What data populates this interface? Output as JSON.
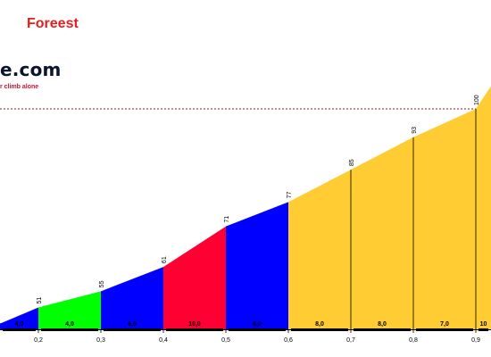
{
  "page": {
    "title": "Foreest",
    "logo_text": "e.com",
    "tagline": "r climb alone"
  },
  "colors": {
    "blue": "#0000ff",
    "green": "#00ff00",
    "red": "#ff0033",
    "yellow": "#ffcc33",
    "title_red": "#e61e1e"
  },
  "chart_data": {
    "type": "area",
    "title": "Foreest",
    "xlabel": "",
    "ylabel": "",
    "x_ticks": [
      "0,2",
      "0,3",
      "0,4",
      "0,5",
      "0,6",
      "0,7",
      "0,8",
      "0,9"
    ],
    "xlim": [
      0.1,
      0.98
    ],
    "ylim": [
      45,
      100
    ],
    "points": [
      {
        "x": 0.1,
        "y": 47
      },
      {
        "x": 0.2,
        "y": 51
      },
      {
        "x": 0.3,
        "y": 55
      },
      {
        "x": 0.4,
        "y": 61
      },
      {
        "x": 0.5,
        "y": 71
      },
      {
        "x": 0.6,
        "y": 77
      },
      {
        "x": 0.7,
        "y": 85
      },
      {
        "x": 0.8,
        "y": 93
      },
      {
        "x": 0.9,
        "y": 100
      }
    ],
    "elevation_labels": [
      "51",
      "55",
      "61",
      "71",
      "77",
      "85",
      "93",
      "100"
    ],
    "segments": [
      {
        "from": 0.1,
        "to": 0.2,
        "gradient": "4,0",
        "color": "#0000ff"
      },
      {
        "from": 0.2,
        "to": 0.3,
        "gradient": "4,0",
        "color": "#00ff00"
      },
      {
        "from": 0.3,
        "to": 0.4,
        "gradient": "6,0",
        "color": "#0000ff"
      },
      {
        "from": 0.4,
        "to": 0.5,
        "gradient": "10,0",
        "color": "#ff0033"
      },
      {
        "from": 0.5,
        "to": 0.6,
        "gradient": "6,0",
        "color": "#0000ff"
      },
      {
        "from": 0.6,
        "to": 0.7,
        "gradient": "8,0",
        "color": "#ffcc33"
      },
      {
        "from": 0.7,
        "to": 0.8,
        "gradient": "8,0",
        "color": "#ffcc33"
      },
      {
        "from": 0.8,
        "to": 0.9,
        "gradient": "7,0",
        "color": "#ffcc33"
      },
      {
        "from": 0.9,
        "to": 0.98,
        "gradient": "10",
        "color": "#ffcc33"
      }
    ],
    "reference_lines": [
      47,
      100
    ],
    "grid": false
  }
}
